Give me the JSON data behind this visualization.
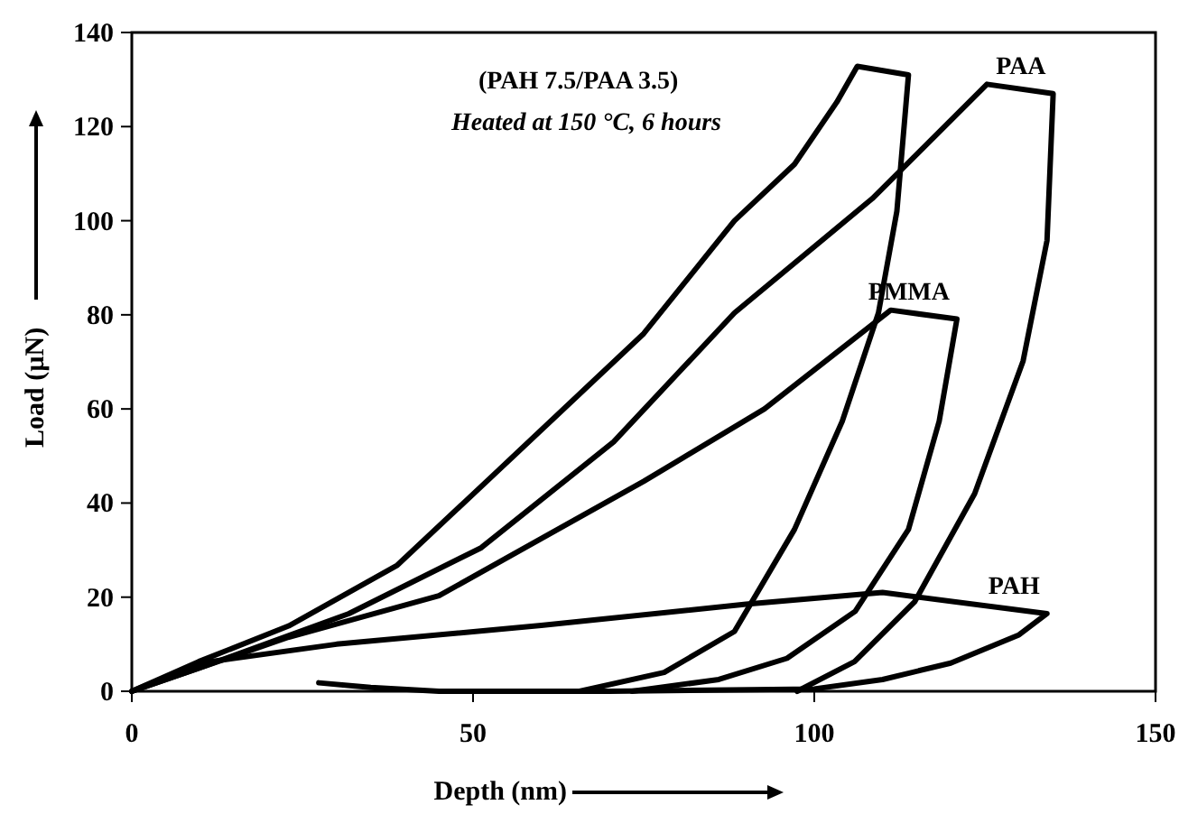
{
  "chart_data": {
    "type": "line",
    "xlabel": "Depth (nm)",
    "ylabel": "Load (µN)",
    "xlim": [
      0,
      150
    ],
    "ylim": [
      0,
      140
    ],
    "xticks": [
      0,
      50,
      100,
      150
    ],
    "yticks": [
      0,
      20,
      40,
      60,
      80,
      100,
      120,
      140
    ],
    "grid": false,
    "legend": false,
    "marker": "none",
    "line_style": "solid",
    "annotations": [
      "(PAH 7.5/PAA 3.5)",
      "Heated at 150 °C, 6 hours"
    ],
    "series": [
      {
        "color": "#000000",
        "x": [
          0,
          9.8,
          23,
          38.9,
          53.9,
          75,
          88.3,
          97.1,
          103.3,
          106.3,
          113.8,
          112.1,
          109.4,
          104.1,
          97.1,
          88.3,
          78,
          65.6
        ],
        "values": [
          0,
          6.3,
          13.9,
          26.8,
          47.2,
          76,
          100,
          112,
          125.2,
          132.8,
          131,
          102,
          80.4,
          57.4,
          34.4,
          12.7,
          4,
          0
        ]
      },
      {
        "name": "PAA",
        "color": "#000000",
        "x": [
          0,
          10,
          31.8,
          51.2,
          70.6,
          88.3,
          108.5,
          125.3,
          135,
          134.1,
          130.6,
          123.5,
          114.7,
          105.9,
          97.5
        ],
        "values": [
          0,
          5,
          16.5,
          30.5,
          53,
          80.4,
          104.7,
          129,
          127,
          95.8,
          70.2,
          42,
          19,
          6.3,
          0
        ]
      },
      {
        "name": "PMMA",
        "color": "#000000",
        "x": [
          0,
          10,
          23,
          45,
          75,
          92.7,
          111.2,
          120.9,
          118.3,
          113.8,
          106,
          96,
          86,
          73.3
        ],
        "values": [
          0,
          5,
          11.5,
          20.3,
          44.6,
          60,
          81,
          79.1,
          57.4,
          34.4,
          17,
          7,
          2.5,
          0
        ]
      },
      {
        "name": "PAH",
        "color": "#000000",
        "x": [
          0,
          10,
          30,
          60,
          90,
          110,
          134.1,
          130,
          120,
          110,
          100,
          70,
          45,
          35,
          27.4
        ],
        "values": [
          0,
          6,
          10,
          14,
          18.5,
          21,
          16.5,
          12,
          6,
          2.5,
          0.5,
          0,
          0,
          0.8,
          1.8
        ]
      }
    ]
  }
}
